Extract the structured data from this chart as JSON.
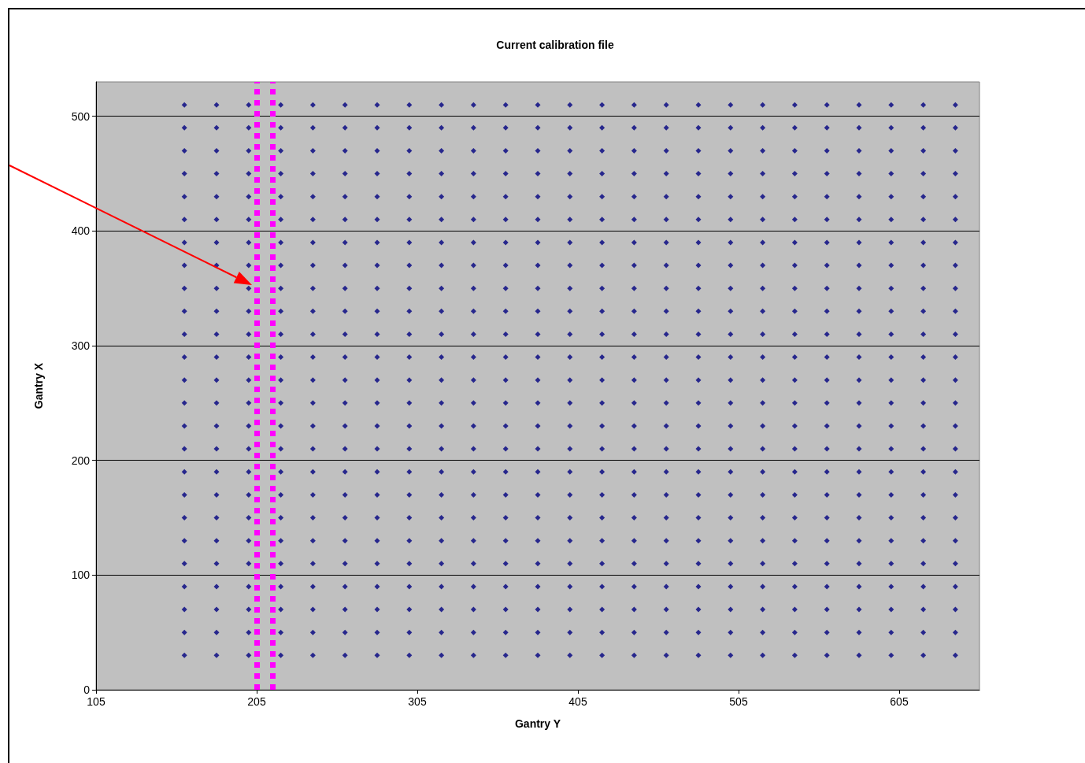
{
  "chart_data": {
    "type": "scatter",
    "title": "Current calibration file",
    "xlabel": "Gantry Y",
    "ylabel": "Gantry X",
    "xlim": [
      105,
      655
    ],
    "xticks": [
      105,
      205,
      305,
      405,
      505,
      605
    ],
    "ylim": [
      0,
      530
    ],
    "yticks": [
      0,
      100,
      200,
      300,
      400,
      500
    ],
    "grid": "y",
    "marker": "diamond",
    "ref_lines": [
      {
        "axis": "x",
        "value": 205,
        "color": "#ff00ff",
        "line_style": "dotted"
      },
      {
        "axis": "x",
        "value": 215,
        "color": "#ff00ff",
        "line_style": "dotted"
      }
    ],
    "x": [
      160,
      180,
      200,
      220,
      240,
      260,
      280,
      300,
      320,
      340,
      360,
      380,
      400,
      420,
      440,
      460,
      480,
      500,
      520,
      540,
      560,
      580,
      600,
      620,
      640
    ],
    "series": [
      {
        "color": "#000080",
        "values": [
          510,
          510,
          510,
          510,
          510,
          510,
          510,
          510,
          510,
          510,
          510,
          510,
          510,
          510,
          510,
          510,
          510,
          510,
          510,
          510,
          510,
          510,
          510,
          510,
          510
        ]
      },
      {
        "color": "#000080",
        "values": [
          490,
          490,
          490,
          490,
          490,
          490,
          490,
          490,
          490,
          490,
          490,
          490,
          490,
          490,
          490,
          490,
          490,
          490,
          490,
          490,
          490,
          490,
          490,
          490,
          490
        ]
      },
      {
        "color": "#000080",
        "values": [
          470,
          470,
          470,
          470,
          470,
          470,
          470,
          470,
          470,
          470,
          470,
          470,
          470,
          470,
          470,
          470,
          470,
          470,
          470,
          470,
          470,
          470,
          470,
          470,
          470
        ]
      },
      {
        "color": "#000080",
        "values": [
          450,
          450,
          450,
          450,
          450,
          450,
          450,
          450,
          450,
          450,
          450,
          450,
          450,
          450,
          450,
          450,
          450,
          450,
          450,
          450,
          450,
          450,
          450,
          450,
          450
        ]
      },
      {
        "color": "#000080",
        "values": [
          430,
          430,
          430,
          430,
          430,
          430,
          430,
          430,
          430,
          430,
          430,
          430,
          430,
          430,
          430,
          430,
          430,
          430,
          430,
          430,
          430,
          430,
          430,
          430,
          430
        ]
      },
      {
        "color": "#000080",
        "values": [
          410,
          410,
          410,
          410,
          410,
          410,
          410,
          410,
          410,
          410,
          410,
          410,
          410,
          410,
          410,
          410,
          410,
          410,
          410,
          410,
          410,
          410,
          410,
          410,
          410
        ]
      },
      {
        "color": "#000080",
        "values": [
          390,
          390,
          390,
          390,
          390,
          390,
          390,
          390,
          390,
          390,
          390,
          390,
          390,
          390,
          390,
          390,
          390,
          390,
          390,
          390,
          390,
          390,
          390,
          390,
          390
        ]
      },
      {
        "color": "#000080",
        "values": [
          370,
          370,
          370,
          370,
          370,
          370,
          370,
          370,
          370,
          370,
          370,
          370,
          370,
          370,
          370,
          370,
          370,
          370,
          370,
          370,
          370,
          370,
          370,
          370,
          370
        ]
      },
      {
        "color": "#000080",
        "values": [
          350,
          350,
          350,
          350,
          350,
          350,
          350,
          350,
          350,
          350,
          350,
          350,
          350,
          350,
          350,
          350,
          350,
          350,
          350,
          350,
          350,
          350,
          350,
          350,
          350
        ]
      },
      {
        "color": "#000080",
        "values": [
          330,
          330,
          330,
          330,
          330,
          330,
          330,
          330,
          330,
          330,
          330,
          330,
          330,
          330,
          330,
          330,
          330,
          330,
          330,
          330,
          330,
          330,
          330,
          330,
          330
        ]
      },
      {
        "color": "#000080",
        "values": [
          310,
          310,
          310,
          310,
          310,
          310,
          310,
          310,
          310,
          310,
          310,
          310,
          310,
          310,
          310,
          310,
          310,
          310,
          310,
          310,
          310,
          310,
          310,
          310,
          310
        ]
      },
      {
        "color": "#000080",
        "values": [
          290,
          290,
          290,
          290,
          290,
          290,
          290,
          290,
          290,
          290,
          290,
          290,
          290,
          290,
          290,
          290,
          290,
          290,
          290,
          290,
          290,
          290,
          290,
          290,
          290
        ]
      },
      {
        "color": "#000080",
        "values": [
          270,
          270,
          270,
          270,
          270,
          270,
          270,
          270,
          270,
          270,
          270,
          270,
          270,
          270,
          270,
          270,
          270,
          270,
          270,
          270,
          270,
          270,
          270,
          270,
          270
        ]
      },
      {
        "color": "#000080",
        "values": [
          250,
          250,
          250,
          250,
          250,
          250,
          250,
          250,
          250,
          250,
          250,
          250,
          250,
          250,
          250,
          250,
          250,
          250,
          250,
          250,
          250,
          250,
          250,
          250,
          250
        ]
      },
      {
        "color": "#000080",
        "values": [
          230,
          230,
          230,
          230,
          230,
          230,
          230,
          230,
          230,
          230,
          230,
          230,
          230,
          230,
          230,
          230,
          230,
          230,
          230,
          230,
          230,
          230,
          230,
          230,
          230
        ]
      },
      {
        "color": "#000080",
        "values": [
          210,
          210,
          210,
          210,
          210,
          210,
          210,
          210,
          210,
          210,
          210,
          210,
          210,
          210,
          210,
          210,
          210,
          210,
          210,
          210,
          210,
          210,
          210,
          210,
          210
        ]
      },
      {
        "color": "#000080",
        "values": [
          190,
          190,
          190,
          190,
          190,
          190,
          190,
          190,
          190,
          190,
          190,
          190,
          190,
          190,
          190,
          190,
          190,
          190,
          190,
          190,
          190,
          190,
          190,
          190,
          190
        ]
      },
      {
        "color": "#000080",
        "values": [
          170,
          170,
          170,
          170,
          170,
          170,
          170,
          170,
          170,
          170,
          170,
          170,
          170,
          170,
          170,
          170,
          170,
          170,
          170,
          170,
          170,
          170,
          170,
          170,
          170
        ]
      },
      {
        "color": "#000080",
        "values": [
          150,
          150,
          150,
          150,
          150,
          150,
          150,
          150,
          150,
          150,
          150,
          150,
          150,
          150,
          150,
          150,
          150,
          150,
          150,
          150,
          150,
          150,
          150,
          150,
          150
        ]
      },
      {
        "color": "#000080",
        "values": [
          130,
          130,
          130,
          130,
          130,
          130,
          130,
          130,
          130,
          130,
          130,
          130,
          130,
          130,
          130,
          130,
          130,
          130,
          130,
          130,
          130,
          130,
          130,
          130,
          130
        ]
      },
      {
        "color": "#000080",
        "values": [
          110,
          110,
          110,
          110,
          110,
          110,
          110,
          110,
          110,
          110,
          110,
          110,
          110,
          110,
          110,
          110,
          110,
          110,
          110,
          110,
          110,
          110,
          110,
          110,
          110
        ]
      },
      {
        "color": "#000080",
        "values": [
          90,
          90,
          90,
          90,
          90,
          90,
          90,
          90,
          90,
          90,
          90,
          90,
          90,
          90,
          90,
          90,
          90,
          90,
          90,
          90,
          90,
          90,
          90,
          90,
          90
        ]
      },
      {
        "color": "#000080",
        "values": [
          70,
          70,
          70,
          70,
          70,
          70,
          70,
          70,
          70,
          70,
          70,
          70,
          70,
          70,
          70,
          70,
          70,
          70,
          70,
          70,
          70,
          70,
          70,
          70,
          70
        ]
      },
      {
        "color": "#000080",
        "values": [
          50,
          50,
          50,
          50,
          50,
          50,
          50,
          50,
          50,
          50,
          50,
          50,
          50,
          50,
          50,
          50,
          50,
          50,
          50,
          50,
          50,
          50,
          50,
          50,
          50
        ]
      },
      {
        "color": "#000080",
        "values": [
          30,
          30,
          30,
          30,
          30,
          30,
          30,
          30,
          30,
          30,
          30,
          30,
          30,
          30,
          30,
          30,
          30,
          30,
          30,
          30,
          30,
          30,
          30,
          30,
          30
        ]
      }
    ]
  }
}
